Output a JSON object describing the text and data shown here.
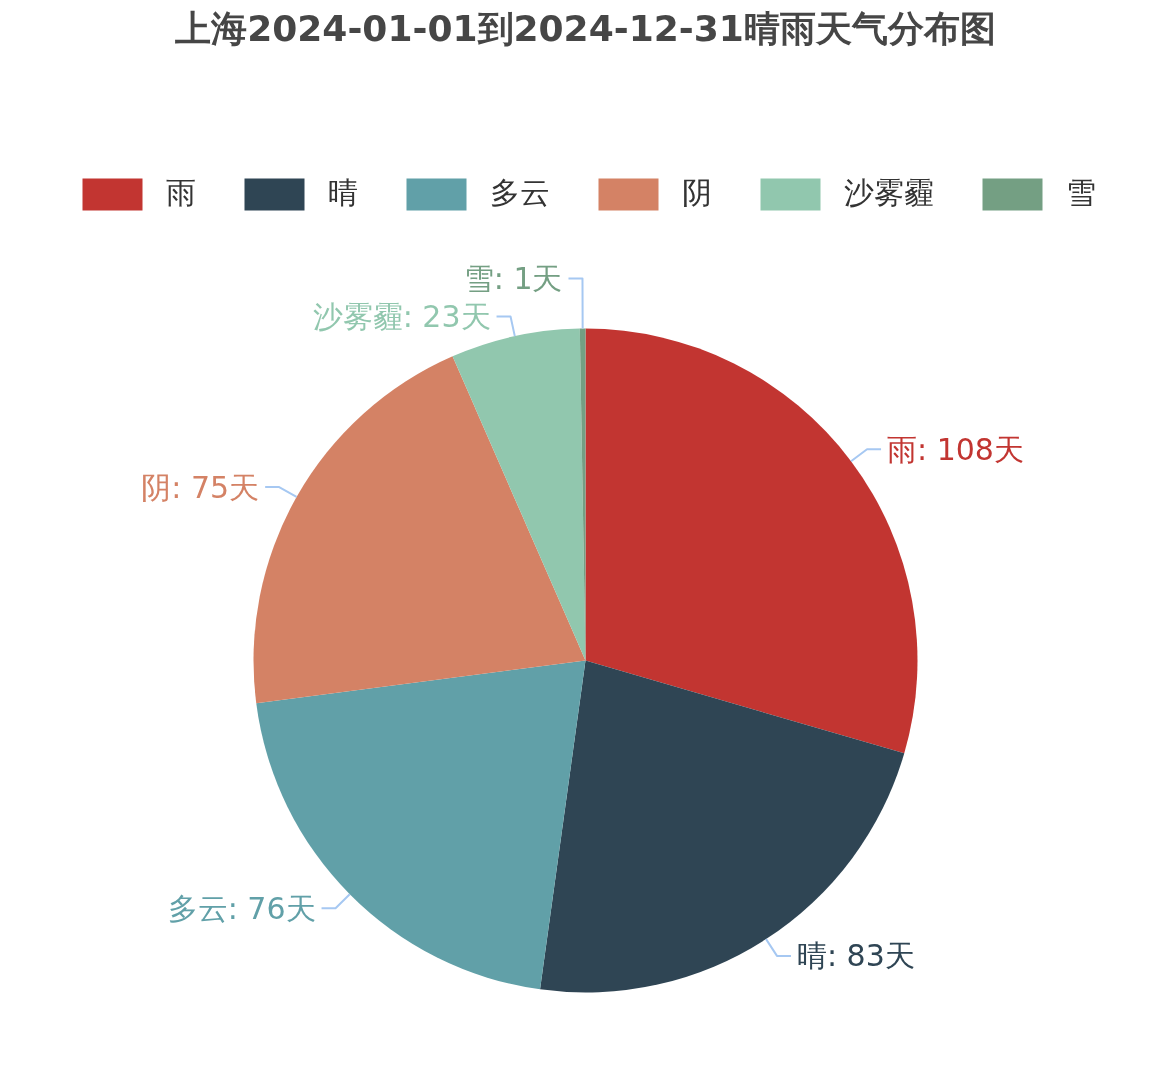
{
  "chart_data": {
    "type": "pie",
    "title": "上海2024-01-01到2024-12-31晴雨天气分布图",
    "categories": [
      "雨",
      "晴",
      "多云",
      "阴",
      "沙雾霾",
      "雪"
    ],
    "values": [
      108,
      83,
      76,
      75,
      23,
      1
    ],
    "colors": [
      "#c23531",
      "#2f4554",
      "#61a0a8",
      "#d48265",
      "#91c7ae",
      "#749f83"
    ],
    "value_labels": [
      "雨: 108天",
      "晴: 83天",
      "多云: 76天",
      "阴: 75天",
      "沙雾霾: 23天",
      "雪: 1天"
    ],
    "legend": "top"
  }
}
